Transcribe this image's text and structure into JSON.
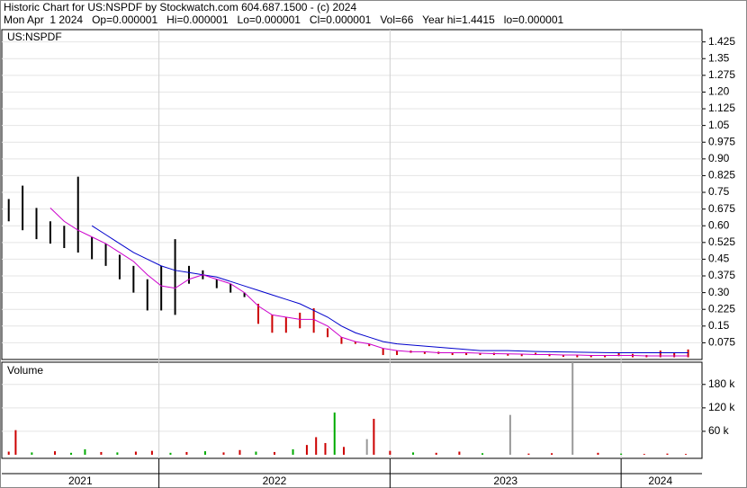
{
  "chart_data": [
    {
      "type": "range",
      "title": "Historic Chart for US:NSPDF by Stockwatch.com 604.687.1500 - (c) 2024",
      "subtitle": "Mon Apr  1 2024   Op=0.000001   Hi=0.000001   Lo=0.000001   Cl=0.000001   Vol=66   Year hi=1.4415   lo=0.000001",
      "label": "US:NSPDF",
      "x": [
        2021.35,
        2021.41,
        2021.47,
        2021.53,
        2021.59,
        2021.65,
        2021.71,
        2021.77,
        2021.83,
        2021.89,
        2021.95,
        2022.01,
        2022.07,
        2022.13,
        2022.19,
        2022.25,
        2022.31,
        2022.37,
        2022.43,
        2022.49,
        2022.55,
        2022.61,
        2022.67,
        2022.73,
        2022.79,
        2022.85,
        2022.91,
        2022.97,
        2023.03,
        2023.09,
        2023.15,
        2023.21,
        2023.27,
        2023.33,
        2023.39,
        2023.45,
        2023.51,
        2023.57,
        2023.63,
        2023.69,
        2023.75,
        2023.81,
        2023.87,
        2023.93,
        2023.99,
        2024.05,
        2024.11,
        2024.17,
        2024.23,
        2024.29
      ],
      "high": [
        0.72,
        0.78,
        0.68,
        0.62,
        0.6,
        0.82,
        0.55,
        0.52,
        0.47,
        0.42,
        0.36,
        0.42,
        0.54,
        0.42,
        0.4,
        0.36,
        0.34,
        0.3,
        0.25,
        0.2,
        0.19,
        0.21,
        0.23,
        0.14,
        0.1,
        0.08,
        0.07,
        0.05,
        0.04,
        0.04,
        0.035,
        0.035,
        0.03,
        0.03,
        0.03,
        0.03,
        0.025,
        0.025,
        0.03,
        0.025,
        0.02,
        0.02,
        0.02,
        0.02,
        0.03,
        0.025,
        0.02,
        0.04,
        0.03,
        0.045
      ],
      "low": [
        0.62,
        0.58,
        0.54,
        0.52,
        0.5,
        0.48,
        0.45,
        0.42,
        0.36,
        0.3,
        0.22,
        0.22,
        0.2,
        0.34,
        0.36,
        0.32,
        0.3,
        0.28,
        0.16,
        0.12,
        0.12,
        0.14,
        0.12,
        0.1,
        0.07,
        0.07,
        0.06,
        0.02,
        0.02,
        0.03,
        0.025,
        0.025,
        0.02,
        0.02,
        0.02,
        0.02,
        0.02,
        0.015,
        0.02,
        0.015,
        0.015,
        0.01,
        0.01,
        0.01,
        0.015,
        0.01,
        0.01,
        0.01,
        0.01,
        0.01
      ],
      "colors": [
        "#000000",
        "#000000",
        "#000000",
        "#000000",
        "#000000",
        "#000000",
        "#000000",
        "#000000",
        "#000000",
        "#000000",
        "#000000",
        "#000000",
        "#000000",
        "#000000",
        "#000000",
        "#000000",
        "#000000",
        "#000000",
        "#cc0000",
        "#cc0000",
        "#cc0000",
        "#cc0000",
        "#cc0000",
        "#cc0000",
        "#cc0000",
        "#cc0000",
        "#cc0000",
        "#cc0000",
        "#cc0000",
        "#cc0000",
        "#cc0000",
        "#cc0000",
        "#cc0000",
        "#cc0000",
        "#cc0000",
        "#cc0000",
        "#cc0000",
        "#cc0000",
        "#cc0000",
        "#cc0000",
        "#cc0000",
        "#cc0000",
        "#cc0000",
        "#cc0000",
        "#cc0000",
        "#cc0000",
        "#cc0000",
        "#cc0000",
        "#cc0000",
        "#cc0000"
      ],
      "averages": [
        {
          "color": "#0000cc",
          "values": [
            null,
            null,
            null,
            null,
            null,
            null,
            0.6,
            0.56,
            0.52,
            0.48,
            0.45,
            0.42,
            0.4,
            0.39,
            0.38,
            0.37,
            0.35,
            0.33,
            0.31,
            0.29,
            0.27,
            0.25,
            0.22,
            0.19,
            0.15,
            0.12,
            0.1,
            0.08,
            0.07,
            0.065,
            0.06,
            0.055,
            0.05,
            0.045,
            0.04,
            0.04,
            0.04,
            0.038,
            0.036,
            0.035,
            0.034,
            0.033,
            0.032,
            0.031,
            0.03,
            0.03,
            0.03,
            0.03,
            0.03,
            0.03
          ]
        },
        {
          "color": "#cc00cc",
          "values": [
            null,
            null,
            null,
            0.68,
            0.62,
            0.58,
            0.55,
            0.52,
            0.48,
            0.44,
            0.38,
            0.33,
            0.32,
            0.36,
            0.38,
            0.36,
            0.34,
            0.3,
            0.24,
            0.2,
            0.19,
            0.18,
            0.18,
            0.15,
            0.1,
            0.08,
            0.07,
            0.05,
            0.04,
            0.035,
            0.035,
            0.03,
            0.03,
            0.03,
            0.028,
            0.026,
            0.025,
            0.024,
            0.022,
            0.022,
            0.02,
            0.02,
            0.018,
            0.018,
            0.018,
            0.018,
            0.016,
            0.016,
            0.016,
            0.016
          ]
        }
      ],
      "xlim": [
        2021.32,
        2024.35
      ],
      "xticks": [
        {
          "value": 2021.66,
          "label": "2021"
        },
        {
          "value": 2022.5,
          "label": "2022"
        },
        {
          "value": 2023.5,
          "label": "2023"
        },
        {
          "value": 2024.17,
          "label": "2024"
        }
      ],
      "year_boundaries": [
        2022,
        2023,
        2024
      ],
      "ylim": [
        0,
        1.48
      ],
      "yticks": [
        0.075,
        0.15,
        0.225,
        {
          "value": 0.3,
          "label": "0.30"
        },
        0.375,
        0.45,
        0.525,
        {
          "value": 0.6,
          "label": "0.60"
        },
        0.675,
        0.75,
        0.825,
        {
          "value": 0.9,
          "label": "0.90"
        },
        0.975,
        1.05,
        1.125,
        {
          "value": 1.2,
          "label": "1.20"
        },
        1.275,
        1.35,
        1.425
      ],
      "grid": true
    },
    {
      "type": "bar",
      "title": "Volume",
      "x": [
        2021.35,
        2021.38,
        2021.45,
        2021.55,
        2021.62,
        2021.68,
        2021.75,
        2021.82,
        2021.9,
        2021.97,
        2022.05,
        2022.12,
        2022.2,
        2022.28,
        2022.35,
        2022.42,
        2022.5,
        2022.58,
        2022.64,
        2022.68,
        2022.72,
        2022.76,
        2022.8,
        2022.9,
        2022.93,
        2023.0,
        2023.1,
        2023.2,
        2023.3,
        2023.4,
        2023.52,
        2023.6,
        2023.7,
        2023.79,
        2023.9,
        2024.0,
        2024.1,
        2024.2,
        2024.28
      ],
      "values": [
        8000,
        63000,
        6000,
        9000,
        5000,
        14000,
        7000,
        6000,
        8000,
        10000,
        5000,
        7000,
        9000,
        6000,
        12000,
        8000,
        7000,
        14000,
        25000,
        45000,
        30000,
        108000,
        20000,
        40000,
        92000,
        10000,
        6000,
        5000,
        8000,
        4000,
        102000,
        3000,
        4000,
        237000,
        5000,
        3000,
        2000,
        3000,
        2000
      ],
      "colors": [
        "#cc0000",
        "#cc0000",
        "#00aa00",
        "#cc0000",
        "#00aa00",
        "#00aa00",
        "#cc0000",
        "#00aa00",
        "#cc0000",
        "#cc0000",
        "#00aa00",
        "#cc0000",
        "#00aa00",
        "#cc0000",
        "#cc0000",
        "#00aa00",
        "#cc0000",
        "#00aa00",
        "#cc0000",
        "#cc0000",
        "#cc0000",
        "#00aa00",
        "#cc0000",
        "#999999",
        "#cc0000",
        "#cc0000",
        "#00aa00",
        "#cc0000",
        "#cc0000",
        "#00aa00",
        "#999999",
        "#cc0000",
        "#cc0000",
        "#999999",
        "#cc0000",
        "#00aa00",
        "#cc0000",
        "#cc0000",
        "#cc0000"
      ],
      "ylim": [
        0,
        237000
      ],
      "yticks": [
        {
          "value": 60000,
          "label": "60 k"
        },
        {
          "value": 120000,
          "label": "120 k"
        },
        {
          "value": 180000,
          "label": "180 k"
        }
      ],
      "grid": true
    }
  ]
}
